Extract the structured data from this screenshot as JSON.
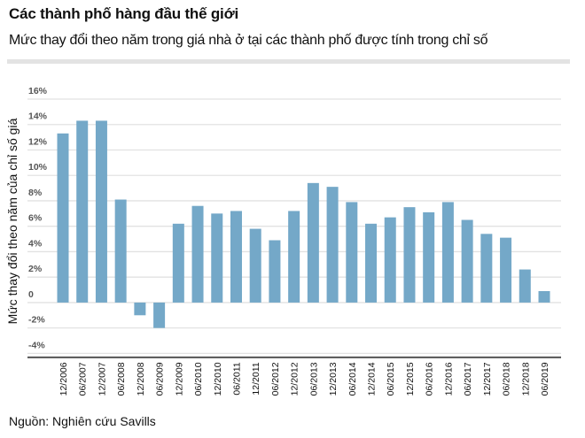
{
  "header": {
    "title": "Các thành phố hàng đầu thế giới",
    "subtitle": "Mức thay đổi theo năm trong giá nhà ở tại các thành phố được tính trong chỉ số"
  },
  "source": "Nguồn: Nghiên cứu Savills",
  "chart_data": {
    "type": "bar",
    "title": "",
    "xlabel": "",
    "ylabel": "Mức thay đổi theo năm của chỉ số giá",
    "ylim": [
      -4,
      16
    ],
    "yticks": [
      16,
      14,
      12,
      10,
      8,
      6,
      4,
      2,
      0,
      -2,
      -4
    ],
    "ytick_labels": [
      "16%",
      "14%",
      "12%",
      "10%",
      "8%",
      "6%",
      "4%",
      "2%",
      "0",
      "-2%",
      "-4%"
    ],
    "grid": true,
    "bar_color": "#74a8c8",
    "categories": [
      "12/2006",
      "06/2007",
      "12/2007",
      "06/2008",
      "12/2008",
      "06/2009",
      "12/2009",
      "06/2010",
      "12/2010",
      "06/2011",
      "12/2011",
      "06/2012",
      "12/2012",
      "06/2013",
      "12/2013",
      "06/2014",
      "12/2014",
      "06/2015",
      "12/2015",
      "06/2016",
      "12/2016",
      "06/2017",
      "12/2017",
      "06/2018",
      "12/2018",
      "06/2019"
    ],
    "values": [
      13.3,
      14.3,
      14.3,
      8.1,
      -1.0,
      -2.0,
      6.2,
      7.6,
      7.0,
      7.2,
      5.8,
      4.9,
      7.2,
      9.4,
      9.1,
      7.9,
      6.2,
      6.7,
      7.5,
      7.1,
      7.9,
      6.5,
      5.4,
      5.1,
      2.6,
      0.9
    ]
  }
}
